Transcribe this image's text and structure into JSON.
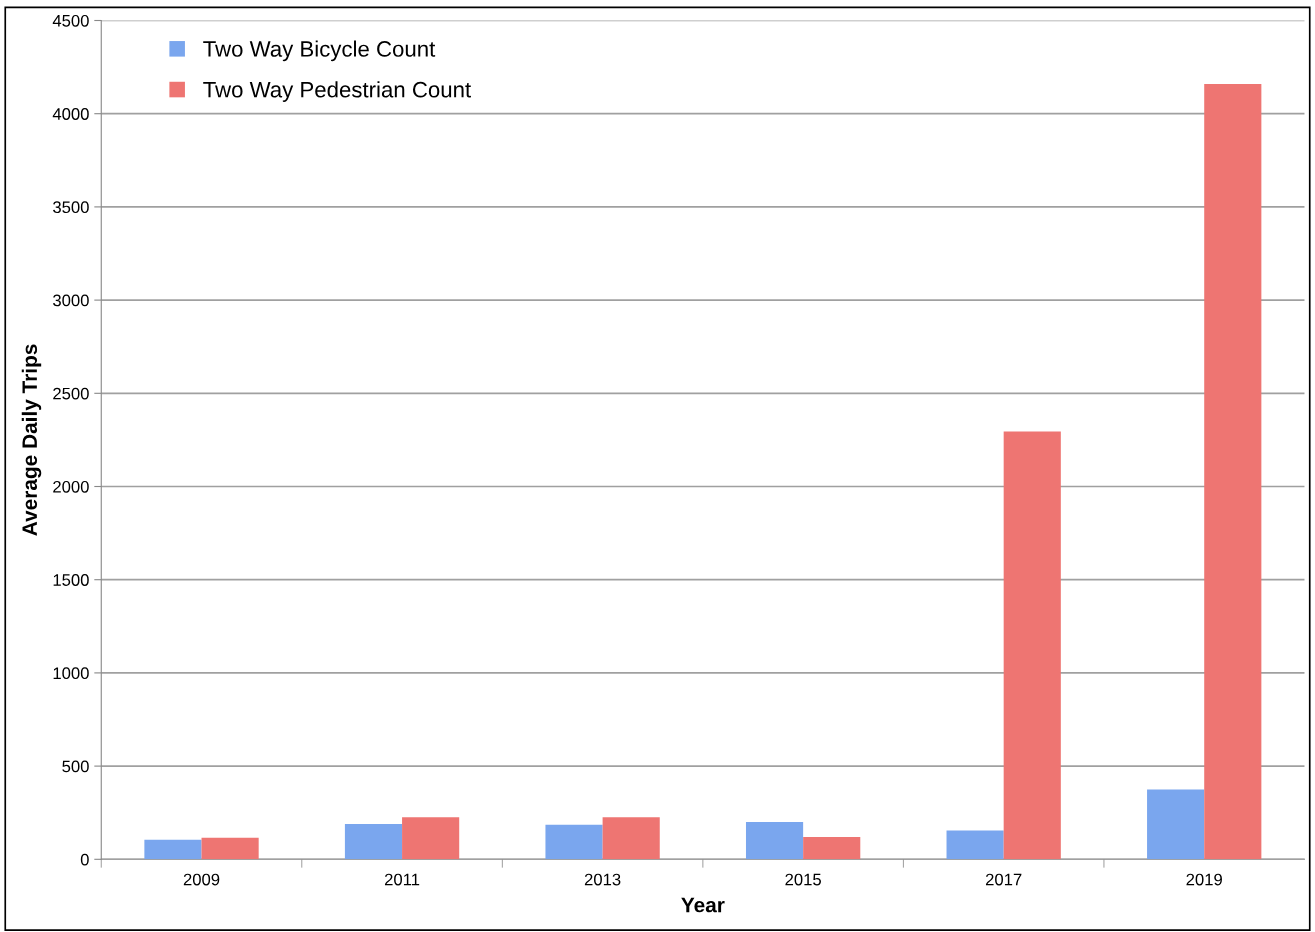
{
  "chart_data": {
    "type": "bar",
    "xlabel": "Year",
    "ylabel": "Average Daily Trips",
    "categories": [
      "2009",
      "2011",
      "2013",
      "2015",
      "2017",
      "2019"
    ],
    "series": [
      {
        "name": "Two Way Bicycle Count",
        "color": "#7aa6ee",
        "values": [
          105,
          190,
          185,
          200,
          155,
          375
        ]
      },
      {
        "name": "Two Way Pedestrian Count",
        "color": "#ee7572",
        "values": [
          115,
          225,
          225,
          120,
          2295,
          4160
        ]
      }
    ],
    "ylim": [
      0,
      4500
    ],
    "yticks": [
      0,
      500,
      1000,
      1500,
      2000,
      2500,
      3000,
      3500,
      4000,
      4500
    ],
    "grid": "y",
    "legend": "top left"
  }
}
